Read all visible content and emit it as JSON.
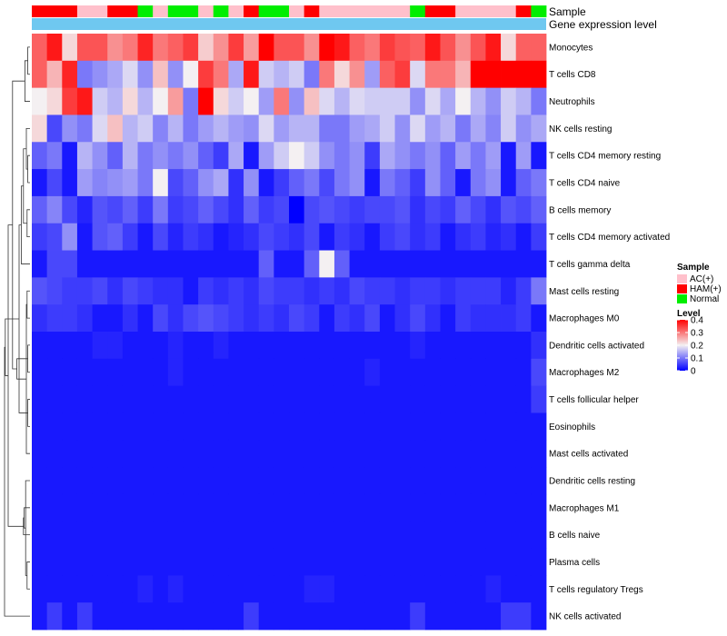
{
  "chart_data": {
    "type": "heatmap",
    "annotation_labels": {
      "sample": "Sample",
      "gene_expression": "Gene expression level"
    },
    "rows": [
      "Monocytes",
      "T cells CD8",
      "Neutrophils",
      "NK cells resting",
      "T cells CD4 memory resting",
      "T cells CD4 naive",
      "B cells memory",
      "T cells CD4 memory activated",
      "T cells gamma delta",
      "Mast cells resting",
      "Macrophages M0",
      "Dendritic cells activated",
      "Macrophages M2",
      "T cells follicular helper",
      "Eosinophils",
      "Mast cells activated",
      "Dendritic cells resting",
      "Macrophages M1",
      "B cells naive",
      "Plasma cells",
      "T cells regulatory  Tregs",
      "NK cells activated"
    ],
    "sample_groups": [
      "HAM(+)",
      "HAM(+)",
      "HAM(+)",
      "AC(+)",
      "AC(+)",
      "HAM(+)",
      "HAM(+)",
      "Normal",
      "AC(+)",
      "Normal",
      "Normal",
      "AC(+)",
      "Normal",
      "AC(+)",
      "HAM(+)",
      "Normal",
      "Normal",
      "AC(+)",
      "HAM(+)",
      "AC(+)",
      "AC(+)",
      "AC(+)",
      "AC(+)",
      "AC(+)",
      "AC(+)",
      "Normal",
      "HAM(+)",
      "HAM(+)",
      "AC(+)",
      "AC(+)",
      "AC(+)",
      "AC(+)",
      "HAM(+)",
      "Normal"
    ],
    "values": [
      [
        0.32,
        0.38,
        0.22,
        0.33,
        0.33,
        0.28,
        0.3,
        0.37,
        0.3,
        0.32,
        0.35,
        0.23,
        0.28,
        0.35,
        0.27,
        0.4,
        0.33,
        0.33,
        0.28,
        0.4,
        0.38,
        0.32,
        0.3,
        0.35,
        0.33,
        0.32,
        0.38,
        0.33,
        0.28,
        0.33,
        0.38,
        0.22,
        0.32,
        0.32
      ],
      [
        0.32,
        0.25,
        0.37,
        0.1,
        0.12,
        0.14,
        0.18,
        0.12,
        0.24,
        0.12,
        0.2,
        0.35,
        0.3,
        0.14,
        0.38,
        0.17,
        0.15,
        0.17,
        0.1,
        0.3,
        0.22,
        0.28,
        0.13,
        0.32,
        0.35,
        0.18,
        0.3,
        0.3,
        0.25,
        0.4,
        0.4,
        0.4,
        0.4,
        0.4
      ],
      [
        0.2,
        0.22,
        0.35,
        0.38,
        0.17,
        0.15,
        0.22,
        0.15,
        0.2,
        0.27,
        0.1,
        0.4,
        0.22,
        0.17,
        0.2,
        0.13,
        0.3,
        0.12,
        0.24,
        0.18,
        0.15,
        0.18,
        0.17,
        0.17,
        0.17,
        0.12,
        0.18,
        0.14,
        0.2,
        0.15,
        0.12,
        0.17,
        0.15,
        0.1
      ],
      [
        0.22,
        0.06,
        0.12,
        0.1,
        0.18,
        0.24,
        0.15,
        0.17,
        0.11,
        0.15,
        0.1,
        0.13,
        0.15,
        0.13,
        0.12,
        0.18,
        0.13,
        0.15,
        0.15,
        0.1,
        0.1,
        0.13,
        0.14,
        0.17,
        0.12,
        0.18,
        0.13,
        0.15,
        0.1,
        0.14,
        0.11,
        0.17,
        0.12,
        0.14
      ],
      [
        0.08,
        0.1,
        0.02,
        0.15,
        0.12,
        0.08,
        0.15,
        0.1,
        0.12,
        0.1,
        0.12,
        0.08,
        0.05,
        0.14,
        0.02,
        0.13,
        0.17,
        0.2,
        0.17,
        0.12,
        0.1,
        0.12,
        0.05,
        0.14,
        0.12,
        0.1,
        0.12,
        0.08,
        0.13,
        0.1,
        0.13,
        0.02,
        0.13,
        0.02
      ],
      [
        0.02,
        0.06,
        0.02,
        0.13,
        0.11,
        0.12,
        0.13,
        0.1,
        0.2,
        0.06,
        0.08,
        0.12,
        0.14,
        0.04,
        0.12,
        0.02,
        0.05,
        0.08,
        0.1,
        0.06,
        0.1,
        0.12,
        0.02,
        0.1,
        0.08,
        0.05,
        0.12,
        0.08,
        0.02,
        0.1,
        0.12,
        0.02,
        0.08,
        0.1
      ],
      [
        0.08,
        0.11,
        0.06,
        0.03,
        0.07,
        0.06,
        0.08,
        0.05,
        0.1,
        0.05,
        0.06,
        0.08,
        0.06,
        0.04,
        0.08,
        0.05,
        0.06,
        0.0,
        0.06,
        0.07,
        0.06,
        0.05,
        0.06,
        0.06,
        0.07,
        0.04,
        0.06,
        0.05,
        0.08,
        0.06,
        0.04,
        0.07,
        0.06,
        0.08
      ],
      [
        0.05,
        0.06,
        0.12,
        0.02,
        0.07,
        0.08,
        0.05,
        0.02,
        0.06,
        0.03,
        0.05,
        0.04,
        0.02,
        0.03,
        0.04,
        0.06,
        0.05,
        0.04,
        0.06,
        0.02,
        0.05,
        0.04,
        0.02,
        0.05,
        0.06,
        0.04,
        0.05,
        0.02,
        0.04,
        0.05,
        0.03,
        0.04,
        0.02,
        0.05
      ],
      [
        0.02,
        0.06,
        0.06,
        0.02,
        0.02,
        0.02,
        0.02,
        0.02,
        0.02,
        0.02,
        0.02,
        0.02,
        0.02,
        0.02,
        0.02,
        0.08,
        0.02,
        0.02,
        0.08,
        0.2,
        0.08,
        0.02,
        0.02,
        0.02,
        0.02,
        0.02,
        0.02,
        0.02,
        0.02,
        0.02,
        0.02,
        0.02,
        0.02,
        0.02
      ],
      [
        0.07,
        0.06,
        0.05,
        0.05,
        0.06,
        0.04,
        0.06,
        0.05,
        0.04,
        0.04,
        0.02,
        0.05,
        0.04,
        0.05,
        0.04,
        0.06,
        0.05,
        0.05,
        0.04,
        0.05,
        0.04,
        0.06,
        0.05,
        0.05,
        0.04,
        0.05,
        0.05,
        0.04,
        0.05,
        0.05,
        0.05,
        0.03,
        0.05,
        0.1
      ],
      [
        0.04,
        0.05,
        0.05,
        0.04,
        0.02,
        0.02,
        0.04,
        0.02,
        0.06,
        0.04,
        0.06,
        0.07,
        0.06,
        0.05,
        0.04,
        0.05,
        0.04,
        0.06,
        0.05,
        0.02,
        0.05,
        0.04,
        0.06,
        0.02,
        0.04,
        0.06,
        0.04,
        0.02,
        0.05,
        0.04,
        0.04,
        0.04,
        0.05,
        0.02
      ],
      [
        0.02,
        0.02,
        0.02,
        0.02,
        0.03,
        0.03,
        0.02,
        0.02,
        0.02,
        0.03,
        0.02,
        0.02,
        0.03,
        0.02,
        0.02,
        0.02,
        0.02,
        0.02,
        0.02,
        0.02,
        0.02,
        0.02,
        0.02,
        0.02,
        0.02,
        0.03,
        0.02,
        0.02,
        0.02,
        0.02,
        0.02,
        0.02,
        0.02,
        0.04
      ],
      [
        0.02,
        0.02,
        0.02,
        0.02,
        0.02,
        0.02,
        0.02,
        0.02,
        0.02,
        0.03,
        0.02,
        0.02,
        0.02,
        0.02,
        0.02,
        0.02,
        0.02,
        0.02,
        0.02,
        0.02,
        0.02,
        0.02,
        0.03,
        0.02,
        0.02,
        0.02,
        0.02,
        0.02,
        0.02,
        0.02,
        0.02,
        0.02,
        0.02,
        0.06
      ],
      [
        0.02,
        0.02,
        0.02,
        0.02,
        0.02,
        0.02,
        0.02,
        0.02,
        0.02,
        0.02,
        0.02,
        0.02,
        0.02,
        0.02,
        0.02,
        0.02,
        0.02,
        0.02,
        0.02,
        0.02,
        0.02,
        0.02,
        0.02,
        0.02,
        0.02,
        0.02,
        0.02,
        0.02,
        0.02,
        0.02,
        0.02,
        0.02,
        0.02,
        0.05
      ],
      [
        0.02,
        0.02,
        0.02,
        0.02,
        0.02,
        0.02,
        0.02,
        0.02,
        0.02,
        0.02,
        0.02,
        0.02,
        0.02,
        0.02,
        0.02,
        0.02,
        0.02,
        0.02,
        0.02,
        0.02,
        0.02,
        0.02,
        0.02,
        0.02,
        0.02,
        0.02,
        0.02,
        0.02,
        0.02,
        0.02,
        0.02,
        0.02,
        0.02,
        0.02
      ],
      [
        0.02,
        0.02,
        0.02,
        0.02,
        0.02,
        0.02,
        0.02,
        0.02,
        0.02,
        0.02,
        0.02,
        0.02,
        0.02,
        0.02,
        0.02,
        0.02,
        0.02,
        0.02,
        0.02,
        0.02,
        0.02,
        0.02,
        0.02,
        0.02,
        0.02,
        0.02,
        0.02,
        0.02,
        0.02,
        0.02,
        0.02,
        0.02,
        0.02,
        0.02
      ],
      [
        0.02,
        0.02,
        0.02,
        0.02,
        0.02,
        0.02,
        0.02,
        0.02,
        0.02,
        0.02,
        0.02,
        0.02,
        0.02,
        0.02,
        0.02,
        0.02,
        0.02,
        0.02,
        0.02,
        0.02,
        0.02,
        0.02,
        0.02,
        0.02,
        0.02,
        0.02,
        0.02,
        0.02,
        0.02,
        0.02,
        0.02,
        0.02,
        0.02,
        0.02
      ],
      [
        0.02,
        0.02,
        0.02,
        0.02,
        0.02,
        0.02,
        0.02,
        0.02,
        0.02,
        0.02,
        0.02,
        0.02,
        0.02,
        0.02,
        0.02,
        0.02,
        0.02,
        0.02,
        0.02,
        0.02,
        0.02,
        0.02,
        0.02,
        0.02,
        0.02,
        0.02,
        0.02,
        0.02,
        0.02,
        0.02,
        0.02,
        0.02,
        0.02,
        0.02
      ],
      [
        0.02,
        0.02,
        0.02,
        0.02,
        0.02,
        0.02,
        0.02,
        0.02,
        0.02,
        0.02,
        0.02,
        0.02,
        0.02,
        0.02,
        0.02,
        0.02,
        0.02,
        0.02,
        0.02,
        0.02,
        0.02,
        0.02,
        0.02,
        0.02,
        0.02,
        0.02,
        0.02,
        0.02,
        0.02,
        0.02,
        0.02,
        0.02,
        0.02,
        0.02
      ],
      [
        0.02,
        0.02,
        0.02,
        0.02,
        0.02,
        0.02,
        0.02,
        0.02,
        0.02,
        0.02,
        0.02,
        0.02,
        0.02,
        0.02,
        0.02,
        0.02,
        0.02,
        0.02,
        0.02,
        0.02,
        0.02,
        0.02,
        0.02,
        0.02,
        0.02,
        0.02,
        0.02,
        0.02,
        0.02,
        0.02,
        0.02,
        0.02,
        0.02,
        0.02
      ],
      [
        0.02,
        0.02,
        0.02,
        0.02,
        0.02,
        0.02,
        0.02,
        0.03,
        0.02,
        0.03,
        0.02,
        0.02,
        0.02,
        0.02,
        0.02,
        0.02,
        0.02,
        0.02,
        0.03,
        0.03,
        0.02,
        0.02,
        0.02,
        0.02,
        0.02,
        0.02,
        0.02,
        0.02,
        0.02,
        0.02,
        0.03,
        0.02,
        0.02,
        0.02
      ],
      [
        0.02,
        0.05,
        0.02,
        0.05,
        0.02,
        0.02,
        0.02,
        0.02,
        0.02,
        0.02,
        0.02,
        0.02,
        0.02,
        0.02,
        0.05,
        0.02,
        0.02,
        0.02,
        0.02,
        0.02,
        0.02,
        0.02,
        0.02,
        0.02,
        0.02,
        0.05,
        0.02,
        0.02,
        0.02,
        0.02,
        0.02,
        0.05,
        0.05,
        0.02
      ]
    ],
    "color_scale": {
      "min": 0,
      "mid": 0.2,
      "max": 0.4,
      "low_color": "#0000ff",
      "mid_color": "#f4f0f2",
      "high_color": "#ff0000"
    },
    "legend_sample": {
      "title": "Sample",
      "items": [
        {
          "label": "AC(+)",
          "color": "#ffc0cb"
        },
        {
          "label": "HAM(+)",
          "color": "#ff0000"
        },
        {
          "label": "Normal",
          "color": "#00ee00"
        }
      ]
    },
    "legend_level": {
      "title": "Level",
      "ticks": [
        {
          "value": 0.4,
          "label": "0.4"
        },
        {
          "value": 0.3,
          "label": "0.3"
        },
        {
          "value": 0.2,
          "label": "0.2"
        },
        {
          "value": 0.1,
          "label": "0.1"
        },
        {
          "value": 0,
          "label": "0"
        }
      ]
    },
    "gene_expression_color": "#6fc8f0",
    "dendrogram": {
      "merges": [
        [
          0,
          1
        ],
        [
          4,
          5
        ],
        [
          6,
          7
        ],
        [
          -1,
          2
        ],
        [
          -2,
          3
        ],
        [
          -5,
          -3
        ],
        [
          9,
          10
        ],
        [
          11,
          12
        ],
        [
          13,
          14
        ],
        [
          -7,
          15
        ],
        [
          -6,
          8
        ],
        [
          -11,
          -9
        ],
        [
          -10,
          -8
        ],
        [
          -4,
          -13
        ],
        [
          19,
          20
        ],
        [
          -15,
          16
        ],
        [
          -16,
          17
        ],
        [
          -17,
          18
        ],
        [
          -18,
          -14
        ],
        [
          -19,
          -12
        ],
        [
          -20,
          21
        ]
      ],
      "heights": [
        3,
        3,
        4,
        7,
        5,
        9,
        4,
        3,
        3,
        5,
        12,
        15,
        18,
        24,
        4,
        6,
        8,
        9,
        30,
        34,
        35
      ]
    }
  }
}
